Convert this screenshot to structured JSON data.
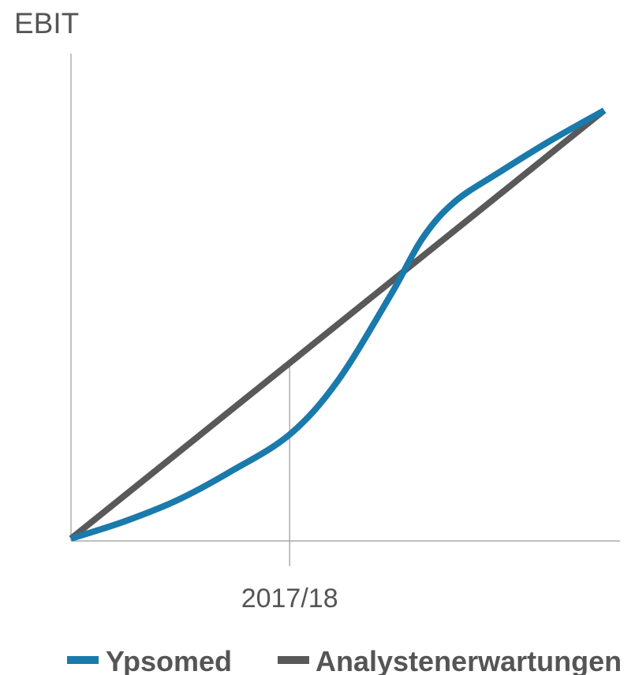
{
  "chart_data": {
    "type": "line",
    "ylabel": "EBIT",
    "xlabel": "",
    "x_tick_labels": [
      "2017/18"
    ],
    "x_ticks": [
      0.41
    ],
    "xlim": [
      0,
      1
    ],
    "ylim": [
      0,
      1
    ],
    "grid": false,
    "y_tick_labels": [],
    "legend_position": "bottom",
    "series": [
      {
        "name": "Ypsomed",
        "color": "#1A7AAB",
        "x": [
          0,
          0.1,
          0.2,
          0.3,
          0.41,
          0.5,
          0.6,
          0.66,
          0.72,
          0.8,
          0.9,
          1.0
        ],
        "y": [
          0,
          0.04,
          0.09,
          0.157,
          0.243,
          0.368,
          0.57,
          0.703,
          0.787,
          0.853,
          0.93,
          1.0
        ]
      },
      {
        "name": "Analystenerwartungen",
        "color": "#595959",
        "x": [
          0,
          1.0
        ],
        "y": [
          0,
          1.0
        ]
      }
    ]
  }
}
